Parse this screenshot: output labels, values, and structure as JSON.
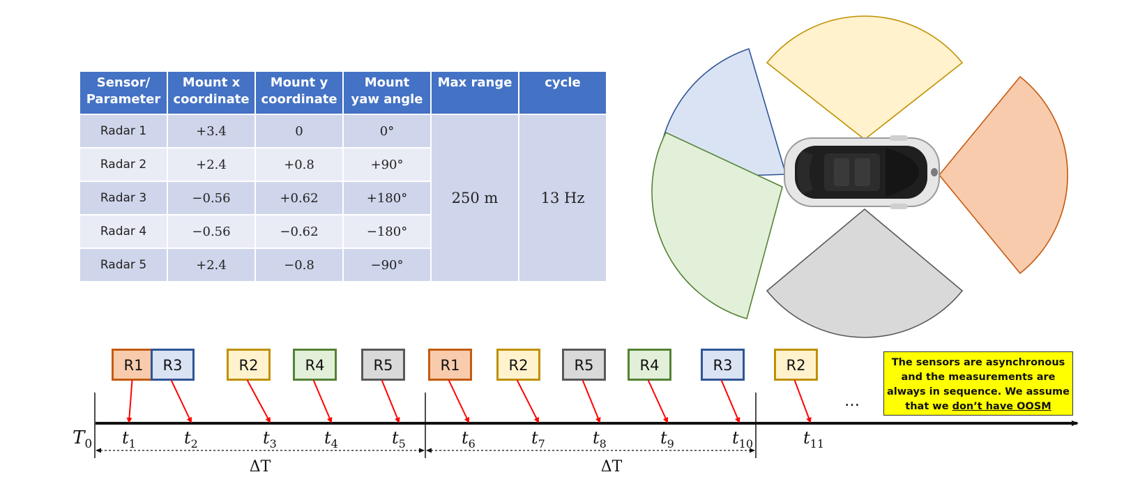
{
  "table": {
    "headers": [
      "Sensor/\nParameter",
      "Mount x\ncoordinate",
      "Mount y\ncoordinate",
      "Mount\nyaw angle",
      "Max range",
      "cycle"
    ],
    "rows": [
      {
        "sensor": "Radar 1",
        "x": "+3.4",
        "y": "0",
        "yaw": "0°"
      },
      {
        "sensor": "Radar 2",
        "x": "+2.4",
        "y": "+0.8",
        "yaw": "+90°"
      },
      {
        "sensor": "Radar 3",
        "x": "−0.56",
        "y": "+0.62",
        "yaw": "+180°"
      },
      {
        "sensor": "Radar 4",
        "x": "−0.56",
        "y": "−0.62",
        "yaw": "−180°"
      },
      {
        "sensor": "Radar 5",
        "x": "+2.4",
        "y": "−0.8",
        "yaw": "−90°"
      }
    ],
    "max_range": "250 m",
    "cycle": "13 Hz"
  },
  "colors": {
    "R1": {
      "fill": "#f8cbad",
      "stroke": "#c55a11"
    },
    "R2": {
      "fill": "#fff2cc",
      "stroke": "#bf9000"
    },
    "R3": {
      "fill": "#dae3f3",
      "stroke": "#2f5597"
    },
    "R4": {
      "fill": "#e2f0d9",
      "stroke": "#548235"
    },
    "R5": {
      "fill": "#d9d9d9",
      "stroke": "#595959"
    },
    "header": "#4472c4",
    "arrow": "#ff0000",
    "note_bg": "#ffff00"
  },
  "timeline": {
    "origin_label": "T",
    "origin_sub": "0",
    "time_symbol": "t",
    "events": [
      {
        "sensor": "R1",
        "sub": "1"
      },
      {
        "sensor": "R3",
        "sub": "2"
      },
      {
        "sensor": "R2",
        "sub": "3"
      },
      {
        "sensor": "R4",
        "sub": "4"
      },
      {
        "sensor": "R5",
        "sub": "5"
      },
      {
        "sensor": "R1",
        "sub": "6"
      },
      {
        "sensor": "R2",
        "sub": "7"
      },
      {
        "sensor": "R5",
        "sub": "8"
      },
      {
        "sensor": "R4",
        "sub": "9"
      },
      {
        "sensor": "R3",
        "sub": "10"
      },
      {
        "sensor": "R2",
        "sub": "11"
      }
    ],
    "delta_labels": [
      "ΔT",
      "ΔT"
    ],
    "ellipsis": "…"
  },
  "note": {
    "line1": "The sensors are asynchronous",
    "line2": "and the measurements are",
    "line3": "always in sequence. We assume",
    "line4_pre": "that we ",
    "line4_u": "don’t have OOSM"
  },
  "coverage": {
    "sectors": [
      "R1",
      "R2",
      "R3",
      "R4",
      "R5"
    ]
  }
}
